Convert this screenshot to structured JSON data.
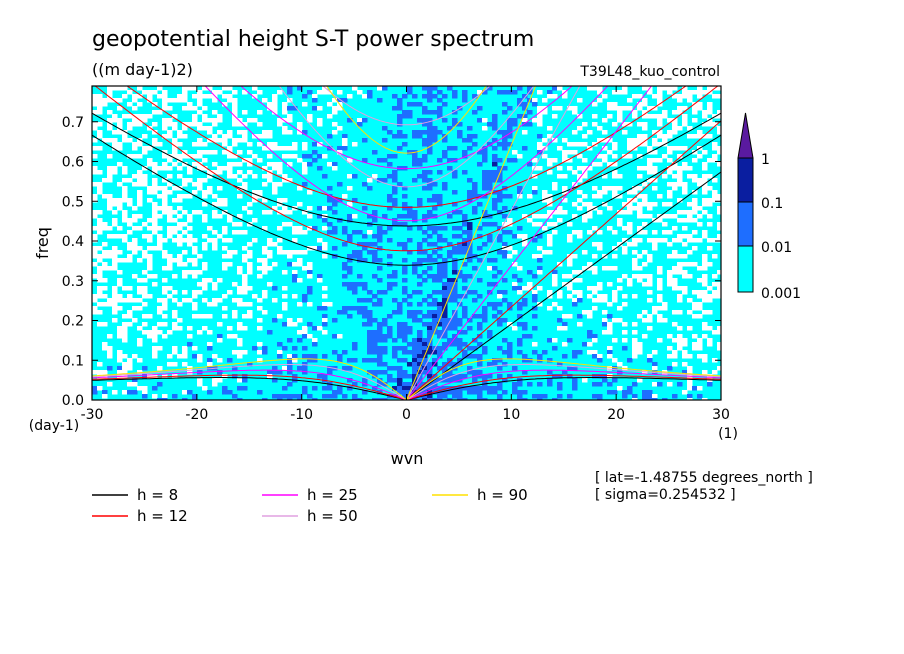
{
  "chart_data": {
    "type": "heatmap",
    "title": "geopotential height S-T power spectrum",
    "subtitle": "((m day-1)2)",
    "run_label": "T39L48_kuo_control",
    "xlabel": "wvn",
    "ylabel": "freq",
    "x_unit": "(1)",
    "y_unit": "(day-1)",
    "xlim": [
      -30,
      30
    ],
    "ylim": [
      0,
      0.79
    ],
    "x_ticks": [
      -30,
      -20,
      -10,
      0,
      10,
      20,
      30
    ],
    "x_tick_labels": [
      "-30",
      "-20",
      "-10",
      "0",
      "10",
      "20",
      "30"
    ],
    "y_ticks": [
      0,
      0.1,
      0.2,
      0.3,
      0.4,
      0.5,
      0.6,
      0.7
    ],
    "y_tick_labels": [
      "0.0",
      "0.1",
      "0.2",
      "0.3",
      "0.4",
      "0.5",
      "0.6",
      "0.7"
    ],
    "contour_levels": [
      0.001,
      0.01,
      0.1,
      1
    ],
    "colorbar_labels": [
      "1",
      "0.1",
      "0.01",
      "0.001"
    ],
    "colors": {
      "below_0.001": "#ffffff",
      "0.001-0.01": "#00ffff",
      "0.01-0.1": "#1e6eff",
      "0.1-1": "#0a1ea0",
      "above_1": "#5a1aa0"
    },
    "dispersion_curves": [
      {
        "name": "h =  8",
        "h": 8,
        "color": "#000000"
      },
      {
        "name": "h = 12",
        "h": 12,
        "color": "#ff0000"
      },
      {
        "name": "h = 25",
        "h": 25,
        "color": "#ff00ff"
      },
      {
        "name": "h = 50",
        "h": 50,
        "color": "#e0a0e0"
      },
      {
        "name": "h = 90",
        "h": 90,
        "color": "#ffe000"
      }
    ],
    "annotations": [
      "[ lat=-1.48755 degrees_north ]",
      "[ sigma=0.254532 ]"
    ]
  }
}
